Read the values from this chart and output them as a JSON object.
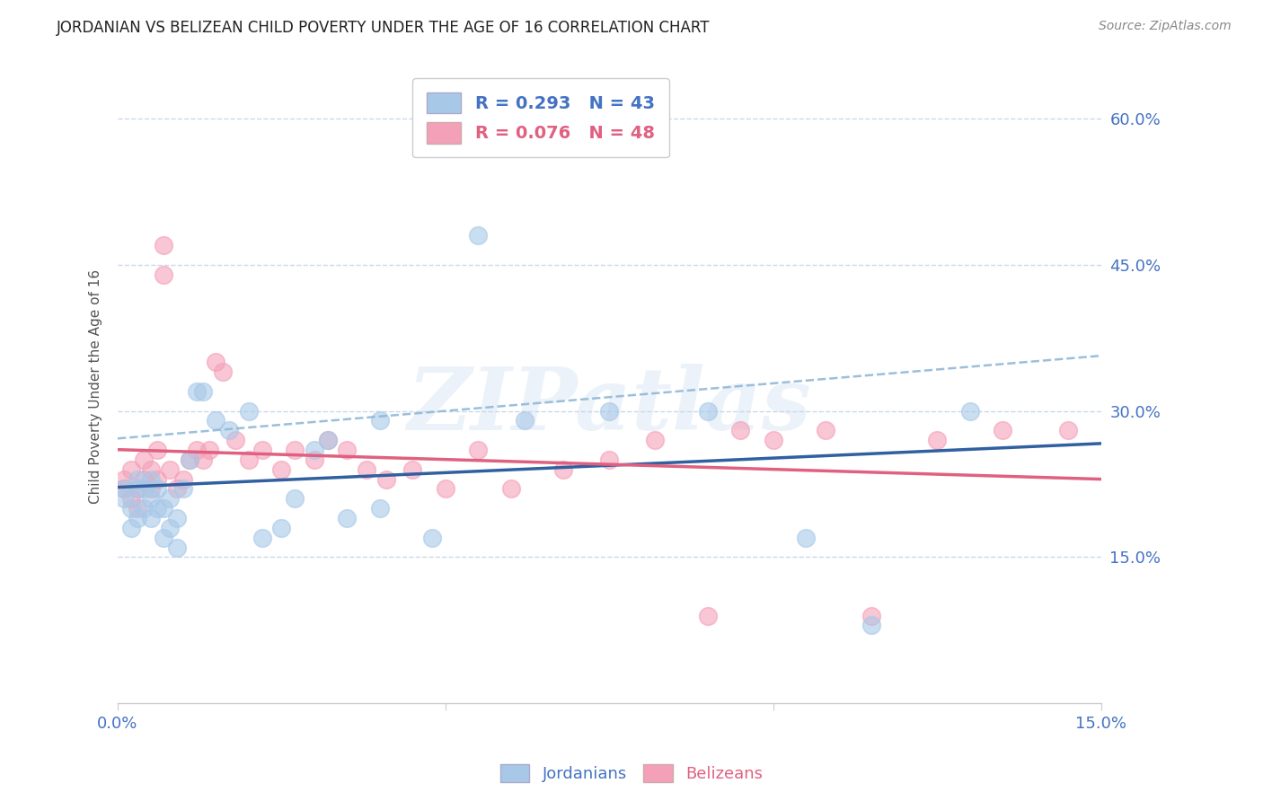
{
  "title": "JORDANIAN VS BELIZEAN CHILD POVERTY UNDER THE AGE OF 16 CORRELATION CHART",
  "source": "Source: ZipAtlas.com",
  "ylabel": "Child Poverty Under the Age of 16",
  "legend_blue_text": "R = 0.293   N = 43",
  "legend_pink_text": "R = 0.076   N = 48",
  "legend_label_blue": "Jordanians",
  "legend_label_pink": "Belizeans",
  "r_jordan": 0.293,
  "n_jordan": 43,
  "r_belize": 0.076,
  "n_belize": 48,
  "blue_scatter": "#a8c8e8",
  "pink_scatter": "#f4a0b8",
  "blue_line": "#3060a0",
  "blue_dash": "#90b8d8",
  "pink_line": "#e06080",
  "axis_label_color": "#4472C4",
  "watermark": "ZIPatlas",
  "watermark_color": "#dde8f5",
  "xlim": [
    0.0,
    0.15
  ],
  "ylim": [
    0.0,
    0.65
  ],
  "yticks": [
    0.15,
    0.3,
    0.45,
    0.6
  ],
  "ytick_labels": [
    "15.0%",
    "30.0%",
    "45.0%",
    "60.0%"
  ],
  "xticks": [
    0.0,
    0.05,
    0.1,
    0.15
  ],
  "xtick_labels": [
    "0.0%",
    "",
    "",
    "15.0%"
  ],
  "grid_color": "#c8d8ec",
  "title_color": "#222222",
  "source_color": "#888888",
  "jordan_x": [
    0.001,
    0.001,
    0.002,
    0.002,
    0.003,
    0.003,
    0.003,
    0.004,
    0.004,
    0.005,
    0.005,
    0.005,
    0.006,
    0.006,
    0.007,
    0.007,
    0.008,
    0.008,
    0.009,
    0.009,
    0.01,
    0.011,
    0.012,
    0.013,
    0.015,
    0.017,
    0.02,
    0.022,
    0.025,
    0.027,
    0.03,
    0.032,
    0.035,
    0.04,
    0.04,
    0.048,
    0.055,
    0.062,
    0.075,
    0.09,
    0.105,
    0.115,
    0.13
  ],
  "jordan_y": [
    0.22,
    0.21,
    0.18,
    0.2,
    0.22,
    0.19,
    0.23,
    0.2,
    0.22,
    0.21,
    0.19,
    0.23,
    0.2,
    0.22,
    0.17,
    0.2,
    0.18,
    0.21,
    0.16,
    0.19,
    0.22,
    0.25,
    0.32,
    0.32,
    0.29,
    0.28,
    0.3,
    0.17,
    0.18,
    0.21,
    0.26,
    0.27,
    0.19,
    0.2,
    0.29,
    0.17,
    0.48,
    0.29,
    0.3,
    0.3,
    0.17,
    0.08,
    0.3
  ],
  "belize_x": [
    0.001,
    0.001,
    0.002,
    0.002,
    0.003,
    0.003,
    0.004,
    0.004,
    0.005,
    0.005,
    0.006,
    0.006,
    0.007,
    0.007,
    0.008,
    0.009,
    0.01,
    0.011,
    0.012,
    0.013,
    0.014,
    0.015,
    0.016,
    0.018,
    0.02,
    0.022,
    0.025,
    0.027,
    0.03,
    0.032,
    0.035,
    0.038,
    0.041,
    0.045,
    0.05,
    0.055,
    0.06,
    0.068,
    0.075,
    0.082,
    0.09,
    0.095,
    0.1,
    0.108,
    0.115,
    0.125,
    0.135,
    0.145
  ],
  "belize_y": [
    0.22,
    0.23,
    0.21,
    0.24,
    0.22,
    0.2,
    0.23,
    0.25,
    0.22,
    0.24,
    0.26,
    0.23,
    0.47,
    0.44,
    0.24,
    0.22,
    0.23,
    0.25,
    0.26,
    0.25,
    0.26,
    0.35,
    0.34,
    0.27,
    0.25,
    0.26,
    0.24,
    0.26,
    0.25,
    0.27,
    0.26,
    0.24,
    0.23,
    0.24,
    0.22,
    0.26,
    0.22,
    0.24,
    0.25,
    0.27,
    0.09,
    0.28,
    0.27,
    0.28,
    0.09,
    0.27,
    0.28,
    0.28
  ]
}
